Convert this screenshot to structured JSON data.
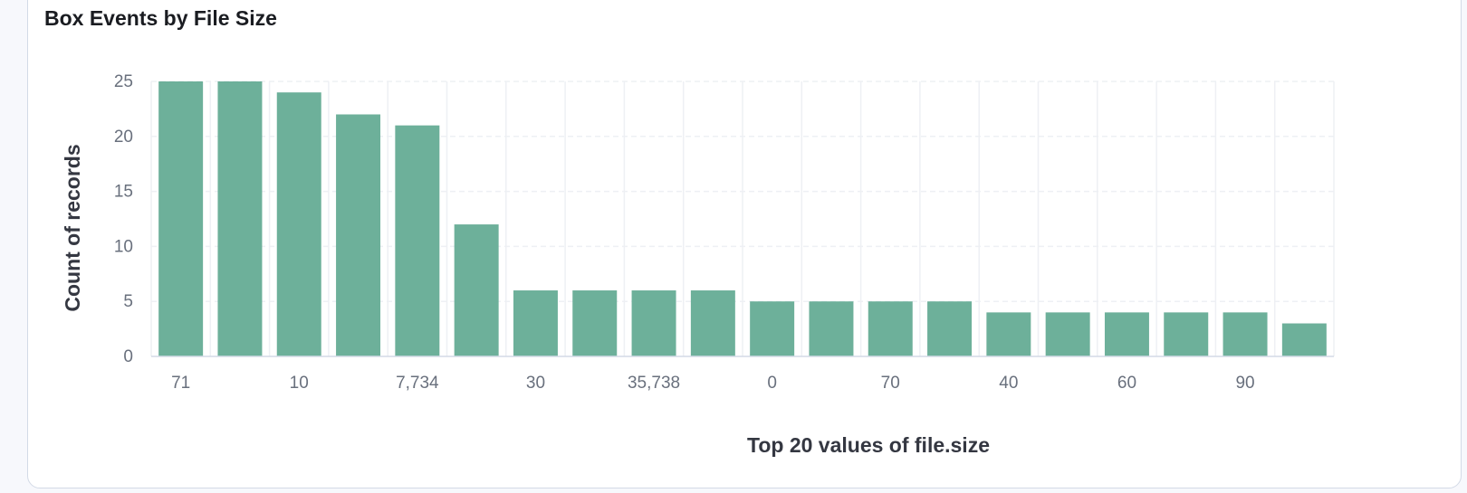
{
  "panel": {
    "title": "Box Events by File Size"
  },
  "chart_data": {
    "type": "bar",
    "title": "Box Events by File Size",
    "xlabel": "Top 20 values of file.size",
    "ylabel": "Count of records",
    "values": [
      25,
      25,
      24,
      22,
      21,
      12,
      6,
      6,
      6,
      6,
      5,
      5,
      5,
      5,
      4,
      4,
      4,
      4,
      4,
      3
    ],
    "x_tick_labels": [
      {
        "index": 0,
        "label": "71"
      },
      {
        "index": 2,
        "label": "10"
      },
      {
        "index": 4,
        "label": "7,734"
      },
      {
        "index": 6,
        "label": "30"
      },
      {
        "index": 8,
        "label": "35,738"
      },
      {
        "index": 10,
        "label": "0"
      },
      {
        "index": 12,
        "label": "70"
      },
      {
        "index": 14,
        "label": "40"
      },
      {
        "index": 16,
        "label": "60"
      },
      {
        "index": 18,
        "label": "90"
      }
    ],
    "y_ticks": [
      0,
      5,
      10,
      15,
      20,
      25
    ],
    "ylim": [
      0,
      25
    ],
    "grid": true,
    "bar_color": "#6db09a",
    "grid_color": "#eef0f4"
  }
}
